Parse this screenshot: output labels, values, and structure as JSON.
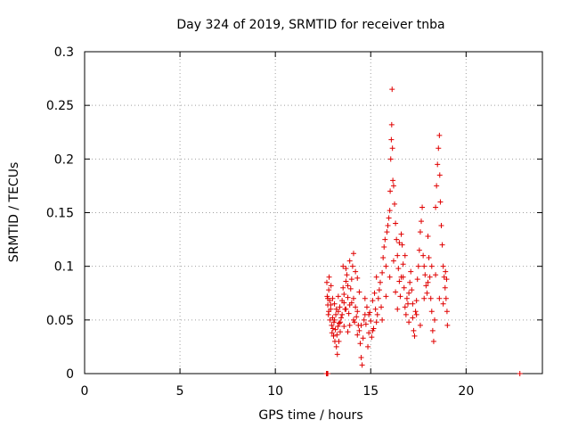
{
  "chart_data": {
    "type": "scatter",
    "title": "Day 324 of 2019, SRMTID for receiver tnba",
    "xlabel": "GPS time / hours",
    "ylabel": "SRMTID / TECUs",
    "xlim": [
      0,
      24
    ],
    "ylim": [
      0,
      0.3
    ],
    "xticks": [
      0,
      5,
      10,
      15,
      20
    ],
    "xtick_labels": [
      "0",
      "5",
      "10",
      "15",
      "20"
    ],
    "yticks": [
      0,
      0.05,
      0.1,
      0.15,
      0.2,
      0.25,
      0.3
    ],
    "ytick_labels": [
      "0",
      "0.05",
      "0.1",
      "0.15",
      "0.2",
      "0.25",
      "0.3"
    ],
    "grid": true,
    "marker": "+",
    "color": "#e00000",
    "series": [
      {
        "name": "SRMTID",
        "points": [
          [
            12.68,
            0.0
          ],
          [
            12.72,
            0.0
          ],
          [
            12.75,
            0.0
          ],
          [
            22.82,
            0.0
          ],
          [
            12.7,
            0.085
          ],
          [
            12.72,
            0.072
          ],
          [
            12.75,
            0.064
          ],
          [
            12.78,
            0.055
          ],
          [
            12.8,
            0.078
          ],
          [
            12.82,
            0.09
          ],
          [
            12.85,
            0.068
          ],
          [
            12.87,
            0.05
          ],
          [
            12.9,
            0.06
          ],
          [
            12.92,
            0.082
          ],
          [
            12.95,
            0.045
          ],
          [
            12.97,
            0.038
          ],
          [
            13.0,
            0.052
          ],
          [
            13.02,
            0.042
          ],
          [
            13.05,
            0.035
          ],
          [
            13.07,
            0.048
          ],
          [
            13.1,
            0.065
          ],
          [
            13.12,
            0.03
          ],
          [
            13.15,
            0.041
          ],
          [
            13.17,
            0.055
          ],
          [
            13.2,
            0.025
          ],
          [
            13.23,
            0.036
          ],
          [
            13.25,
            0.018
          ],
          [
            13.28,
            0.044
          ],
          [
            13.3,
            0.058
          ],
          [
            13.33,
            0.03
          ],
          [
            13.35,
            0.047
          ],
          [
            13.38,
            0.062
          ],
          [
            13.4,
            0.039
          ],
          [
            13.45,
            0.052
          ],
          [
            13.5,
            0.068
          ],
          [
            13.55,
            0.08
          ],
          [
            13.6,
            0.074
          ],
          [
            13.65,
            0.06
          ],
          [
            13.7,
            0.086
          ],
          [
            13.75,
            0.092
          ],
          [
            13.8,
            0.071
          ],
          [
            13.85,
            0.056
          ],
          [
            13.9,
            0.064
          ],
          [
            13.95,
            0.079
          ],
          [
            14.0,
            0.088
          ],
          [
            14.05,
            0.1
          ],
          [
            14.1,
            0.07
          ],
          [
            14.15,
            0.048
          ],
          [
            14.2,
            0.062
          ],
          [
            14.25,
            0.053
          ],
          [
            14.3,
            0.036
          ],
          [
            14.35,
            0.045
          ],
          [
            14.4,
            0.04
          ],
          [
            14.45,
            0.028
          ],
          [
            14.5,
            0.015
          ],
          [
            14.55,
            0.008
          ],
          [
            14.6,
            0.033
          ],
          [
            14.65,
            0.05
          ],
          [
            14.7,
            0.055
          ],
          [
            14.75,
            0.046
          ],
          [
            14.8,
            0.062
          ],
          [
            14.85,
            0.025
          ],
          [
            14.9,
            0.038
          ],
          [
            14.95,
            0.057
          ],
          [
            15.0,
            0.049
          ],
          [
            15.05,
            0.034
          ],
          [
            15.1,
            0.068
          ],
          [
            15.15,
            0.042
          ],
          [
            15.2,
            0.075
          ],
          [
            15.25,
            0.06
          ],
          [
            15.3,
            0.048
          ],
          [
            15.35,
            0.055
          ],
          [
            15.4,
            0.07
          ],
          [
            13.55,
            0.1
          ],
          [
            13.7,
            0.098
          ],
          [
            13.9,
            0.105
          ],
          [
            14.1,
            0.112
          ],
          [
            14.2,
            0.095
          ],
          [
            14.3,
            0.089
          ],
          [
            14.4,
            0.076
          ],
          [
            13.3,
            0.072
          ],
          [
            13.6,
            0.044
          ],
          [
            13.8,
            0.039
          ],
          [
            15.45,
            0.078
          ],
          [
            15.5,
            0.085
          ],
          [
            15.55,
            0.062
          ],
          [
            15.6,
            0.094
          ],
          [
            15.65,
            0.108
          ],
          [
            15.7,
            0.118
          ],
          [
            15.75,
            0.125
          ],
          [
            15.8,
            0.1
          ],
          [
            15.85,
            0.132
          ],
          [
            15.9,
            0.138
          ],
          [
            15.95,
            0.145
          ],
          [
            16.0,
            0.152
          ],
          [
            16.02,
            0.17
          ],
          [
            16.05,
            0.2
          ],
          [
            16.08,
            0.218
          ],
          [
            16.1,
            0.232
          ],
          [
            16.12,
            0.265
          ],
          [
            16.14,
            0.21
          ],
          [
            16.16,
            0.18
          ],
          [
            16.2,
            0.175
          ],
          [
            16.25,
            0.158
          ],
          [
            16.3,
            0.14
          ],
          [
            16.35,
            0.125
          ],
          [
            16.4,
            0.11
          ],
          [
            16.45,
            0.098
          ],
          [
            16.5,
            0.086
          ],
          [
            16.55,
            0.072
          ],
          [
            16.6,
            0.13
          ],
          [
            16.65,
            0.12
          ],
          [
            16.7,
            0.09
          ],
          [
            16.75,
            0.08
          ],
          [
            16.8,
            0.062
          ],
          [
            16.85,
            0.055
          ],
          [
            16.9,
            0.07
          ],
          [
            16.95,
            0.065
          ],
          [
            17.0,
            0.048
          ],
          [
            17.05,
            0.085
          ],
          [
            17.1,
            0.095
          ],
          [
            17.15,
            0.078
          ],
          [
            17.2,
            0.052
          ],
          [
            17.25,
            0.04
          ],
          [
            17.3,
            0.035
          ],
          [
            17.35,
            0.058
          ],
          [
            17.4,
            0.068
          ],
          [
            17.45,
            0.088
          ],
          [
            17.5,
            0.1
          ],
          [
            17.55,
            0.115
          ],
          [
            17.6,
            0.132
          ],
          [
            17.65,
            0.142
          ],
          [
            17.7,
            0.155
          ],
          [
            17.75,
            0.11
          ],
          [
            17.8,
            0.1
          ],
          [
            17.85,
            0.092
          ],
          [
            17.9,
            0.082
          ],
          [
            17.95,
            0.075
          ],
          [
            18.0,
            0.128
          ],
          [
            18.05,
            0.108
          ],
          [
            18.1,
            0.09
          ],
          [
            18.15,
            0.07
          ],
          [
            18.2,
            0.058
          ],
          [
            18.25,
            0.04
          ],
          [
            18.3,
            0.03
          ],
          [
            18.35,
            0.05
          ],
          [
            18.4,
            0.155
          ],
          [
            18.45,
            0.175
          ],
          [
            18.5,
            0.195
          ],
          [
            18.55,
            0.21
          ],
          [
            18.6,
            0.222
          ],
          [
            18.62,
            0.185
          ],
          [
            18.65,
            0.16
          ],
          [
            18.7,
            0.138
          ],
          [
            18.75,
            0.12
          ],
          [
            18.8,
            0.1
          ],
          [
            18.85,
            0.09
          ],
          [
            18.9,
            0.08
          ],
          [
            18.95,
            0.07
          ],
          [
            19.0,
            0.058
          ],
          [
            19.02,
            0.045
          ],
          [
            18.98,
            0.088
          ],
          [
            18.92,
            0.095
          ],
          [
            16.2,
            0.105
          ],
          [
            16.4,
            0.06
          ],
          [
            16.6,
            0.09
          ],
          [
            16.8,
            0.11
          ],
          [
            17.0,
            0.075
          ],
          [
            17.2,
            0.065
          ],
          [
            17.4,
            0.055
          ],
          [
            17.6,
            0.045
          ],
          [
            17.8,
            0.07
          ],
          [
            18.0,
            0.085
          ],
          [
            18.2,
            0.1
          ],
          [
            18.4,
            0.092
          ],
          [
            18.6,
            0.07
          ],
          [
            18.8,
            0.065
          ],
          [
            15.6,
            0.05
          ],
          [
            15.8,
            0.072
          ],
          [
            16.0,
            0.09
          ],
          [
            16.3,
            0.076
          ],
          [
            16.5,
            0.122
          ],
          [
            16.7,
            0.102
          ],
          [
            15.3,
            0.09
          ],
          [
            15.1,
            0.04
          ],
          [
            14.9,
            0.055
          ],
          [
            14.7,
            0.07
          ],
          [
            14.5,
            0.045
          ],
          [
            14.3,
            0.058
          ],
          [
            14.1,
            0.05
          ],
          [
            13.9,
            0.045
          ],
          [
            13.7,
            0.06
          ],
          [
            13.5,
            0.055
          ],
          [
            13.2,
            0.06
          ],
          [
            13.1,
            0.05
          ],
          [
            13.0,
            0.07
          ],
          [
            12.9,
            0.064
          ],
          [
            12.8,
            0.058
          ],
          [
            12.75,
            0.07
          ],
          [
            13.4,
            0.048
          ],
          [
            13.6,
            0.066
          ],
          [
            13.8,
            0.082
          ],
          [
            14.0,
            0.066
          ]
        ]
      }
    ]
  }
}
